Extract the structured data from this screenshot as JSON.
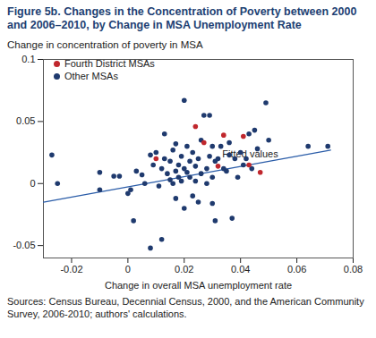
{
  "chart_data": {
    "type": "scatter",
    "title": "Figure 5b. Changes in the Concentration of Poverty between 2000 and 2006–2010, by Change in MSA Unemployment Rate",
    "y_label": "Change in concentration of poverty in MSA",
    "x_label": "Change in overall MSA unemployment rate",
    "caption": "Sources: Census Bureau, Decennial Census, 2000, and the American Community Survey, 2006-2010; authors' calculations.",
    "legend": "top-left",
    "grid": false,
    "xlim": [
      -0.03,
      0.08
    ],
    "xticks": [
      -0.02,
      0,
      0.02,
      0.04,
      0.06,
      0.08
    ],
    "ylim": [
      -0.06,
      0.1
    ],
    "yticks": [
      -0.05,
      0,
      0.05,
      0.1
    ],
    "series": [
      {
        "name": "Fourth District MSAs",
        "type": "scatter",
        "marker": "circle",
        "color": "#c0272d",
        "x": [
          0.01,
          0.024,
          0.027,
          0.034,
          0.032,
          0.041,
          0.043,
          0.047
        ],
        "values": [
          0.02,
          0.046,
          0.033,
          0.039,
          0.014,
          0.038,
          0.015,
          0.009
        ]
      },
      {
        "name": "Other MSAs",
        "type": "scatter",
        "marker": "circle",
        "color": "#1f3a6e",
        "x": [
          -0.027,
          -0.025,
          -0.01,
          -0.01,
          -0.005,
          -0.003,
          0.0,
          0.001,
          0.002,
          0.003,
          0.005,
          0.006,
          0.008,
          0.008,
          0.009,
          0.01,
          0.011,
          0.012,
          0.012,
          0.013,
          0.014,
          0.015,
          0.015,
          0.016,
          0.016,
          0.017,
          0.017,
          0.018,
          0.018,
          0.019,
          0.019,
          0.02,
          0.02,
          0.02,
          0.021,
          0.021,
          0.022,
          0.022,
          0.023,
          0.023,
          0.024,
          0.024,
          0.025,
          0.025,
          0.026,
          0.026,
          0.027,
          0.028,
          0.028,
          0.029,
          0.029,
          0.03,
          0.03,
          0.031,
          0.031,
          0.032,
          0.033,
          0.034,
          0.035,
          0.036,
          0.036,
          0.037,
          0.038,
          0.039,
          0.04,
          0.041,
          0.042,
          0.043,
          0.044,
          0.045,
          0.046,
          0.049,
          0.05,
          0.064,
          0.071,
          0.017,
          0.013,
          0.03
        ],
        "values": [
          0.023,
          0.0,
          0.009,
          -0.005,
          0.006,
          0.006,
          -0.008,
          -0.005,
          -0.03,
          0.01,
          0.007,
          0.0,
          0.023,
          -0.052,
          0.015,
          0.025,
          -0.002,
          0.012,
          -0.045,
          0.02,
          0.008,
          0.003,
          0.018,
          0.027,
          0.0,
          0.01,
          -0.012,
          0.015,
          0.005,
          0.022,
          0.002,
          0.012,
          0.067,
          -0.02,
          0.009,
          0.03,
          0.005,
          0.018,
          -0.01,
          0.025,
          0.014,
          0.002,
          -0.015,
          0.02,
          0.035,
          0.008,
          0.055,
          0.012,
          0.0,
          0.055,
          0.022,
          0.03,
          0.005,
          0.018,
          -0.03,
          0.02,
          0.03,
          0.012,
          0.01,
          0.023,
          0.033,
          -0.028,
          0.02,
          0.005,
          0.025,
          0.015,
          0.02,
          0.04,
          0.012,
          0.043,
          0.028,
          0.065,
          0.035,
          0.03,
          0.03,
          0.032,
          0.04,
          -0.016
        ]
      },
      {
        "name": "Fitted values",
        "type": "line",
        "color": "#2a5ca8",
        "x": [
          -0.03,
          0.072
        ],
        "values": [
          -0.015,
          0.027
        ]
      }
    ]
  }
}
